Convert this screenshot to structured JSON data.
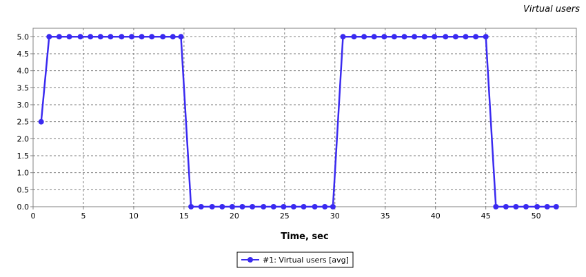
{
  "chart_data": {
    "type": "line",
    "title": "Virtual users",
    "xlabel": "Time, sec",
    "ylabel": "",
    "xlim": [
      0,
      54
    ],
    "ylim": [
      0,
      5.25
    ],
    "xticks": [
      "0",
      "5",
      "10",
      "15",
      "20",
      "25",
      "30",
      "35",
      "40",
      "45",
      "50"
    ],
    "xtick_values": [
      0,
      5,
      10,
      15,
      20,
      25,
      30,
      35,
      40,
      45,
      50
    ],
    "yticks": [
      "0.0",
      "0.5",
      "1.0",
      "1.5",
      "2.0",
      "2.5",
      "3.0",
      "3.5",
      "4.0",
      "4.5",
      "5.0"
    ],
    "ytick_values": [
      0,
      0.5,
      1,
      1.5,
      2,
      2.5,
      3,
      3.5,
      4,
      4.5,
      5
    ],
    "grid": true,
    "legend_position": "bottom-center",
    "series": [
      {
        "name": "#1: Virtual users [avg]",
        "color": "#3a2af0",
        "x": [
          0.8,
          1.6,
          2.6,
          3.6,
          4.7,
          5.7,
          6.7,
          7.7,
          8.8,
          9.8,
          10.8,
          11.8,
          12.9,
          13.9,
          14.7,
          15.7,
          16.7,
          17.8,
          18.8,
          19.8,
          20.8,
          21.8,
          22.9,
          23.9,
          24.9,
          25.9,
          26.9,
          28.0,
          29.0,
          29.8,
          30.8,
          31.9,
          32.9,
          33.9,
          34.9,
          35.9,
          36.9,
          37.9,
          38.9,
          39.9,
          41.0,
          42.0,
          43.0,
          44.0,
          45.0,
          46.0,
          47.0,
          48.0,
          49.0,
          50.1,
          51.1,
          52.0
        ],
        "y": [
          2.5,
          5,
          5,
          5,
          5,
          5,
          5,
          5,
          5,
          5,
          5,
          5,
          5,
          5,
          5,
          0,
          0,
          0,
          0,
          0,
          0,
          0,
          0,
          0,
          0,
          0,
          0,
          0,
          0,
          0,
          5,
          5,
          5,
          5,
          5,
          5,
          5,
          5,
          5,
          5,
          5,
          5,
          5,
          5,
          5,
          0,
          0,
          0,
          0,
          0,
          0,
          0
        ]
      }
    ]
  }
}
